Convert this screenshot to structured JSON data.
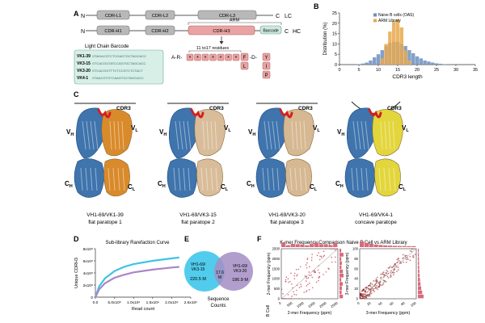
{
  "panelA": {
    "letter": "A",
    "lc": {
      "n": "N",
      "c": "C",
      "tag": "LC",
      "boxes": [
        "CDR-L1",
        "CDR-L2",
        "CDR-L3"
      ]
    },
    "hc": {
      "n": "N",
      "c": "C",
      "tag": "HC",
      "boxes": [
        "CDR-H1",
        "CDR-H2",
        "CDR-H3"
      ],
      "arm": "ARM",
      "barcode": "Barcode"
    },
    "residues": "11 to17 residues",
    "motif": {
      "start": "A-R-",
      "end": "-D-",
      "sub1": [
        "F",
        "L"
      ],
      "sub2": [
        "Y",
        "I",
        "P"
      ]
    },
    "barcode_title": "Light Chain Barcode",
    "barcodes": [
      {
        "name": "VK1-39",
        "seq": "GTAGACGTCTCGAGTGCTAGCACC"
      },
      {
        "name": "VK3-15",
        "seq": "GTCACGGTATCCAGTGCTAGCACC"
      },
      {
        "name": "VK3-20",
        "seq": "GTCACGGTTTCTCCGTCTCTACT"
      },
      {
        "name": "VK4-1",
        "seq": "GTAACGTGTCAAGTGCTAGCACC"
      }
    ]
  },
  "panelB": {
    "letter": "B",
    "chart_data": {
      "type": "bar",
      "xlabel": "CDR3 length",
      "ylabel": "Distribution (%)",
      "xlim": [
        0,
        35
      ],
      "ylim": [
        0,
        25
      ],
      "xticks": [
        0,
        5,
        10,
        15,
        20,
        25,
        30,
        35
      ],
      "yticks": [
        0,
        5,
        10,
        15,
        20,
        25
      ],
      "legend_position": "top-right",
      "x": [
        5,
        6,
        7,
        8,
        9,
        10,
        11,
        12,
        13,
        14,
        15,
        16,
        17,
        18,
        19,
        20,
        21,
        22,
        23,
        24,
        25,
        26,
        27,
        28
      ],
      "series": [
        {
          "name": "Naive B cells (OAS)",
          "color": "#6f8fbf",
          "values": [
            0.2,
            0.5,
            1,
            2,
            3.5,
            5,
            7,
            9,
            10.5,
            11,
            11,
            10,
            9,
            7,
            5.5,
            4,
            3,
            2,
            1.5,
            1,
            0.6,
            0.4,
            0.2,
            0.1
          ]
        },
        {
          "name": "ARM Library",
          "color": "#e8a84c",
          "values": [
            0,
            0,
            0,
            0,
            0,
            0,
            3,
            10,
            16,
            21,
            22,
            18,
            7,
            2,
            0,
            0,
            0,
            0,
            0,
            0,
            0,
            0,
            0,
            0
          ]
        }
      ]
    }
  },
  "panelC": {
    "letter": "C",
    "structures": [
      {
        "cdr3": "CDR3",
        "vh": "VH",
        "vl": "VL",
        "ch": "CH",
        "cl": "CL",
        "name": "VH1-69/VK1-39",
        "desc": "flat paratope 1",
        "color": "#d98a2b"
      },
      {
        "cdr3": "CDR3",
        "vh": "VH",
        "vl": "VL",
        "ch": "CH",
        "cl": "CL",
        "name": "VH1-69/VK3-15",
        "desc": "flat paratope 2",
        "color": "#d9bd9a"
      },
      {
        "cdr3": "CDR3",
        "vh": "VH",
        "vl": "VL",
        "ch": "CH",
        "cl": "CL",
        "name": "VH1-69/VK3-20",
        "desc": "flat paratope 3",
        "color": "#d6b892"
      },
      {
        "cdr3": "CDR3",
        "vh": "VH",
        "vl": "VL",
        "ch": "CH",
        "cl": "CL",
        "name": "VH1-69/VK4-1",
        "desc": "concave paratope",
        "color": "#e3d63c"
      }
    ]
  },
  "panelD": {
    "letter": "D",
    "chart_data": {
      "type": "line",
      "title": "Sub-library Rarefaction Curve",
      "xlabel": "Read count",
      "ylabel": "Unique CDRH3",
      "xticks": [
        "0.0",
        "5.0x10⁸",
        "1.0x10⁹",
        "1.5x10⁹",
        "2.0x10⁹",
        "2.5x10⁹"
      ],
      "yticks": [
        "0",
        "2x10⁸",
        "4x10⁸",
        "6x10⁸",
        "8x10⁸"
      ],
      "xlim": [
        0,
        2500000000
      ],
      "ylim": [
        0,
        800000000
      ],
      "x": [
        0,
        100000000,
        250000000,
        500000000,
        750000000,
        1000000000,
        1500000000,
        2000000000,
        2200000000
      ],
      "series": [
        {
          "color": "#3fc3e6",
          "values": [
            0,
            180000000,
            310000000,
            430000000,
            500000000,
            545000000,
            600000000,
            640000000,
            655000000
          ]
        },
        {
          "color": "#a886c8",
          "values": [
            0,
            130000000,
            230000000,
            320000000,
            370000000,
            410000000,
            455000000,
            490000000,
            500000000
          ]
        }
      ]
    }
  },
  "panelE": {
    "letter": "E",
    "left": {
      "label1": "VH1-69/",
      "label2": "VK3-15",
      "value": "220.5 M",
      "color": "#3ec6ea"
    },
    "right": {
      "label1": "VH1-69/",
      "label2": "VK3-20",
      "value": "186.9 M",
      "color": "#a58dc4"
    },
    "overlap": {
      "v1": "17.6",
      "v2": "M"
    },
    "caption1": "Sequence",
    "caption2": "Counts"
  },
  "panelF": {
    "letter": "F",
    "title": "K-mer Frequency Comparison Naive B Cell vs ARM Library",
    "left": {
      "xlabel": "2-mer Frequency (ppm)",
      "ylabel": "2-mer Frequency (ppm)",
      "side_label": "B Cell",
      "xticks": [
        "0",
        "500",
        "1000",
        "1500",
        "2000",
        "2500"
      ],
      "yticks": [
        "0",
        "500",
        "1000",
        "1500",
        "2000",
        "2500"
      ]
    },
    "right": {
      "xlabel": "3-mer Frequency (ppm)",
      "ylabel": "3-mer Frequency (ppm)",
      "xticks": [
        "0",
        "20",
        "40",
        "60",
        "80",
        "100"
      ],
      "yticks": [
        "0",
        "20",
        "40",
        "60",
        "80",
        "100"
      ]
    }
  }
}
